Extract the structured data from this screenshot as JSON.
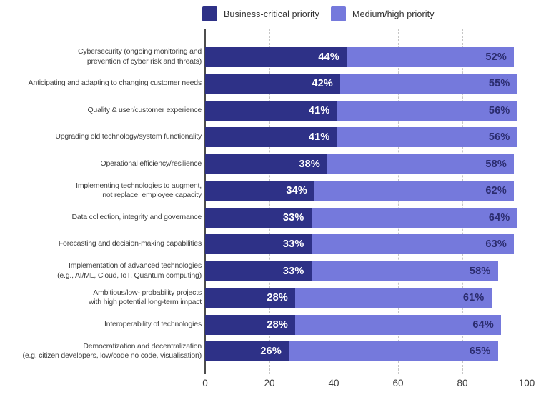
{
  "chart_data": {
    "type": "bar",
    "orientation": "horizontal",
    "stacked": true,
    "title": "",
    "xlabel": "",
    "ylabel": "",
    "xlim": [
      0,
      100
    ],
    "x_ticks": [
      0,
      20,
      40,
      60,
      80,
      100
    ],
    "grid": "vertical-dashed",
    "legend_position": "top",
    "value_suffix": "%",
    "categories": [
      "Cybersecurity (ongoing monitoring and\nprevention of cyber risk and threats)",
      "Anticipating and adapting to changing customer needs",
      "Quality & user/customer experience",
      "Upgrading old technology/system functionality",
      "Operational efficiency/resilience",
      "Implementing technologies to augment,\nnot replace, employee capacity",
      "Data collection, integrity and governance",
      "Forecasting and decision-making capabilities",
      "Implementation of advanced technologies\n(e.g., AI/ML, Cloud, IoT, Quantum computing)",
      "Ambitious/low- probability projects\nwith high potential long-term impact",
      "Interoperability of technologies",
      "Democratization and decentralization\n(e.g. citizen developers, low/code no code, visualisation)"
    ],
    "series": [
      {
        "name": "Business-critical priority",
        "color": "#2e3187",
        "value_text_color": "#ffffff",
        "values": [
          44,
          42,
          41,
          41,
          38,
          34,
          33,
          33,
          33,
          28,
          28,
          26
        ]
      },
      {
        "name": "Medium/high priority",
        "color": "#7579dc",
        "value_text_color": "#2b2c6e",
        "values": [
          52,
          55,
          56,
          56,
          58,
          62,
          64,
          63,
          58,
          61,
          64,
          65
        ]
      }
    ]
  },
  "colors": {
    "background": "#ffffff",
    "gridline": "#c6c6c6",
    "axis_line": "#4d4d4d",
    "category_text": "#3f3f3f",
    "tick_text": "#3c3c3c",
    "legend_text": "#333333"
  }
}
